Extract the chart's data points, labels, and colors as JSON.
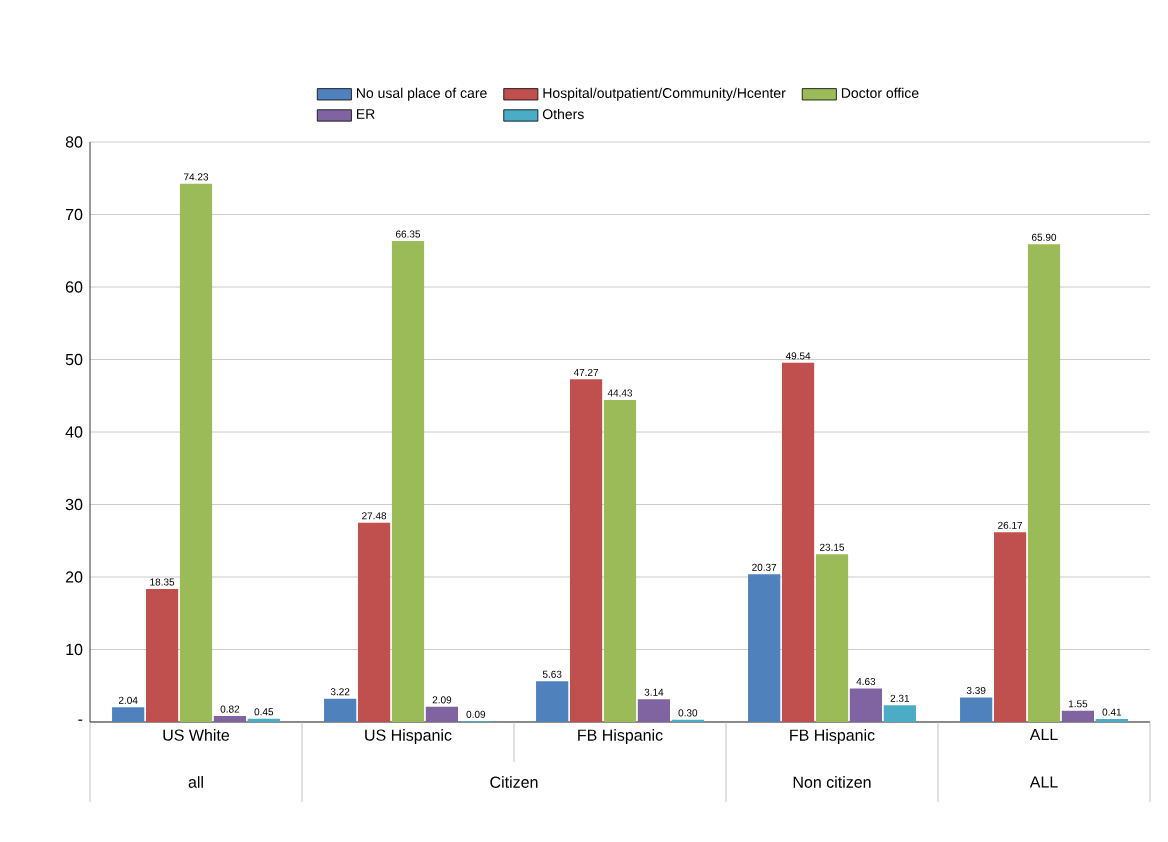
{
  "chart_data": {
    "type": "bar",
    "categories": [
      "US White",
      "US Hispanic",
      "FB Hispanic",
      "FB Hispanic",
      "ALL"
    ],
    "annotations": [
      "all",
      "Citizen",
      "Non citizen",
      "ALL"
    ],
    "series": [
      {
        "name": "No usal place of care",
        "color": "#4f81bd",
        "values": [
          2.04,
          3.22,
          5.63,
          20.37,
          3.39
        ],
        "value_labels": [
          "2.04",
          "3.22",
          "5.63",
          "20.37",
          "3.39"
        ]
      },
      {
        "name": "Hospital/outpatient/Community/Hcenter",
        "color": "#c0504d",
        "values": [
          18.35,
          27.48,
          47.27,
          49.54,
          26.17
        ],
        "value_labels": [
          "18.35",
          "27.48",
          "47.27",
          "49.54",
          "26.17"
        ]
      },
      {
        "name": "Doctor office",
        "color": "#9bbb59",
        "values": [
          74.23,
          66.35,
          44.43,
          23.15,
          65.9
        ],
        "value_labels": [
          "74.23",
          "66.35",
          "44.43",
          "23.15",
          "65.90"
        ]
      },
      {
        "name": "ER",
        "color": "#8064a2",
        "values": [
          0.82,
          2.09,
          3.14,
          4.63,
          1.55
        ],
        "value_labels": [
          "0.82",
          "2.09",
          "3.14",
          "4.63",
          "1.55"
        ]
      },
      {
        "name": "Others",
        "color": "#4bacc6",
        "values": [
          0.45,
          0.09,
          0.3,
          2.31,
          0.41
        ],
        "value_labels": [
          "0.45",
          "0.09",
          "0.30",
          "2.31",
          "0.41"
        ]
      }
    ],
    "ylim": [
      0,
      80
    ],
    "yticks": [
      {
        "value": 0,
        "label": "-"
      },
      10,
      20,
      30,
      40,
      50,
      60,
      70,
      80
    ],
    "grid": "y",
    "legend": "top"
  }
}
